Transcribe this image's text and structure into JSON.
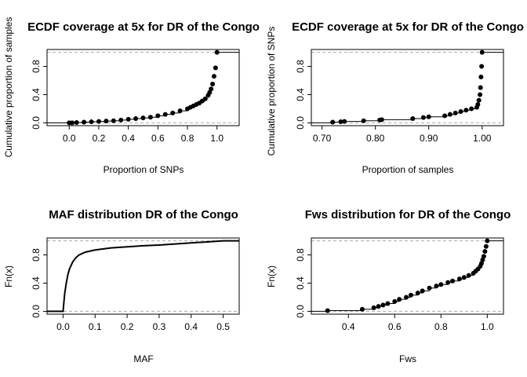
{
  "chart_data": [
    {
      "type": "scatter",
      "kind": "ecdf",
      "title": "ECDF coverage at 5x for DR of the Congo",
      "xlabel": "Proportion of SNPs",
      "ylabel": "Cumulative proportion of samples",
      "xlim": [
        -0.15,
        1.15
      ],
      "ylim": [
        -0.04,
        1.04
      ],
      "xticks": [
        "0.0",
        "0.2",
        "0.4",
        "0.6",
        "0.8",
        "1.0"
      ],
      "yticks": [
        "0.0",
        "0.4",
        "0.8"
      ],
      "grid": false,
      "series": [
        {
          "style": "points",
          "x": [
            0.0,
            0.02,
            0.05,
            0.1,
            0.15,
            0.2,
            0.25,
            0.3,
            0.35,
            0.4,
            0.45,
            0.5,
            0.55,
            0.6,
            0.65,
            0.7,
            0.75,
            0.8,
            0.82,
            0.84,
            0.86,
            0.88,
            0.9,
            0.92,
            0.94,
            0.95,
            0.96,
            0.97,
            0.98,
            0.99,
            1.0
          ],
          "y": [
            0.0,
            0.0,
            0.005,
            0.01,
            0.015,
            0.02,
            0.025,
            0.03,
            0.04,
            0.05,
            0.06,
            0.07,
            0.08,
            0.1,
            0.12,
            0.14,
            0.17,
            0.2,
            0.22,
            0.24,
            0.26,
            0.28,
            0.31,
            0.34,
            0.39,
            0.43,
            0.48,
            0.55,
            0.66,
            0.78,
            1.0
          ]
        }
      ]
    },
    {
      "type": "scatter",
      "kind": "ecdf",
      "title": "ECDF coverage at 5x for DR of the Congo",
      "xlabel": "Proportion of samples",
      "ylabel": "Cumulative proportion of SNPs",
      "xlim": [
        0.68,
        1.04
      ],
      "ylim": [
        -0.04,
        1.04
      ],
      "xticks": [
        "0.70",
        "0.80",
        "0.90",
        "1.00"
      ],
      "yticks": [
        "0.0",
        "0.4",
        "0.8"
      ],
      "grid": false,
      "series": [
        {
          "style": "points",
          "x": [
            0.72,
            0.735,
            0.742,
            0.778,
            0.808,
            0.812,
            0.87,
            0.89,
            0.9,
            0.93,
            0.94,
            0.95,
            0.96,
            0.97,
            0.98,
            0.99,
            0.992,
            0.994,
            0.996,
            0.997,
            0.998,
            0.999,
            1.0
          ],
          "y": [
            0.01,
            0.015,
            0.02,
            0.03,
            0.04,
            0.045,
            0.06,
            0.075,
            0.085,
            0.1,
            0.12,
            0.14,
            0.16,
            0.18,
            0.2,
            0.22,
            0.26,
            0.32,
            0.4,
            0.5,
            0.65,
            0.8,
            1.0
          ]
        }
      ]
    },
    {
      "type": "line",
      "kind": "ecdf",
      "title": "MAF distribution DR of the Congo",
      "xlabel": "MAF",
      "ylabel": "Fn(x)",
      "xlim": [
        -0.05,
        0.55
      ],
      "ylim": [
        -0.04,
        1.04
      ],
      "xticks": [
        "0.0",
        "0.1",
        "0.2",
        "0.3",
        "0.4",
        "0.5"
      ],
      "yticks": [
        "0.0",
        "0.4",
        "0.8"
      ],
      "grid": false,
      "series": [
        {
          "style": "line",
          "x": [
            0.0,
            0.002,
            0.005,
            0.01,
            0.015,
            0.02,
            0.03,
            0.04,
            0.05,
            0.07,
            0.1,
            0.15,
            0.2,
            0.25,
            0.3,
            0.35,
            0.4,
            0.45,
            0.5
          ],
          "y": [
            0.0,
            0.1,
            0.25,
            0.4,
            0.52,
            0.6,
            0.7,
            0.76,
            0.8,
            0.84,
            0.87,
            0.9,
            0.915,
            0.93,
            0.94,
            0.955,
            0.97,
            0.985,
            1.0
          ]
        }
      ]
    },
    {
      "type": "scatter",
      "kind": "ecdf",
      "title": "Fws distribution for DR of the Congo",
      "xlabel": "Fws",
      "ylabel": "Fn(x)",
      "xlim": [
        0.24,
        1.07
      ],
      "ylim": [
        -0.04,
        1.04
      ],
      "xticks": [
        "0.4",
        "0.6",
        "0.8",
        "1.0"
      ],
      "yticks": [
        "0.0",
        "0.4",
        "0.8"
      ],
      "grid": false,
      "series": [
        {
          "style": "points",
          "x": [
            0.31,
            0.46,
            0.51,
            0.53,
            0.55,
            0.57,
            0.6,
            0.62,
            0.65,
            0.67,
            0.7,
            0.72,
            0.75,
            0.78,
            0.8,
            0.83,
            0.85,
            0.88,
            0.9,
            0.92,
            0.94,
            0.95,
            0.96,
            0.97,
            0.975,
            0.98,
            0.985,
            0.99,
            0.995,
            1.0
          ],
          "y": [
            0.01,
            0.03,
            0.05,
            0.07,
            0.09,
            0.11,
            0.14,
            0.17,
            0.2,
            0.23,
            0.26,
            0.29,
            0.33,
            0.36,
            0.38,
            0.41,
            0.43,
            0.46,
            0.48,
            0.51,
            0.54,
            0.57,
            0.6,
            0.64,
            0.68,
            0.73,
            0.78,
            0.85,
            0.92,
            1.0
          ]
        }
      ]
    }
  ]
}
